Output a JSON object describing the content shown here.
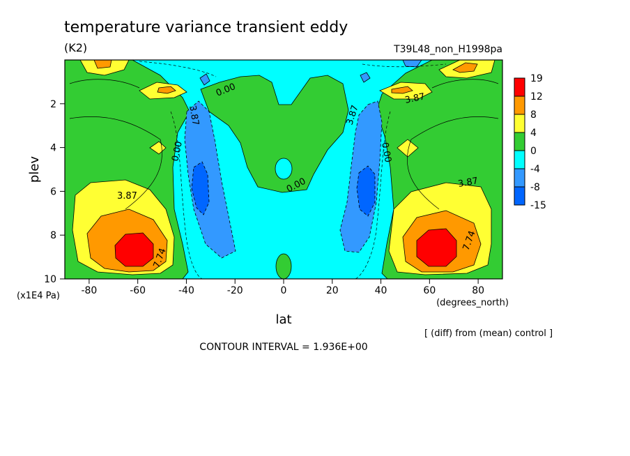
{
  "header": {
    "title": "temperature variance transient eddy",
    "units": "(K2)",
    "run_label": "T39L48_non_H1998pa"
  },
  "footer": {
    "diff_note": "[ (diff) from (mean) control ]",
    "contour_interval": "CONTOUR INTERVAL = 1.936E+00"
  },
  "chart_data": {
    "type": "heatmap",
    "x_axis": {
      "label": "lat",
      "units_label": "(degrees_north)",
      "range": [
        -90,
        90
      ],
      "ticks": [
        -80,
        -60,
        -40,
        -20,
        0,
        20,
        40,
        60,
        80
      ]
    },
    "y_axis": {
      "label": "plev",
      "units_label": "(x1E4 Pa)",
      "range": [
        0,
        10
      ],
      "reversed": true,
      "ticks": [
        2,
        4,
        6,
        8,
        10
      ]
    },
    "colorbar": {
      "levels": [
        "19",
        "12",
        "8",
        "4",
        "0",
        "-4",
        "-8",
        "-15"
      ],
      "colors": [
        "#ff0000",
        "#ff9900",
        "#ffff33",
        "#33cc33",
        "#00ffff",
        "#3399ff",
        "#0066ff"
      ]
    },
    "contour_labels": [
      "0.00",
      "0.00",
      "0.00",
      "0.00",
      "3.87",
      "3.87",
      "3.87",
      "3.87",
      "3.87",
      "7.74",
      "7.74"
    ],
    "features": [
      {
        "name": "southern positive maximum",
        "lat": -58,
        "plev": 8.6,
        "value_range": "12 to 19"
      },
      {
        "name": "northern positive maximum",
        "lat": 60,
        "plev": 8.6,
        "value_range": "12 to 19"
      },
      {
        "name": "southern negative minimum",
        "lat": -35,
        "plev": 5.5,
        "value_range": "-8 to -4"
      },
      {
        "name": "northern negative minimum",
        "lat": 33,
        "plev": 5.5,
        "value_range": "-8 to -4"
      },
      {
        "name": "equatorial positive tongue",
        "lat": 0,
        "plev": 3.5,
        "value_range": "0 to 4"
      }
    ]
  }
}
